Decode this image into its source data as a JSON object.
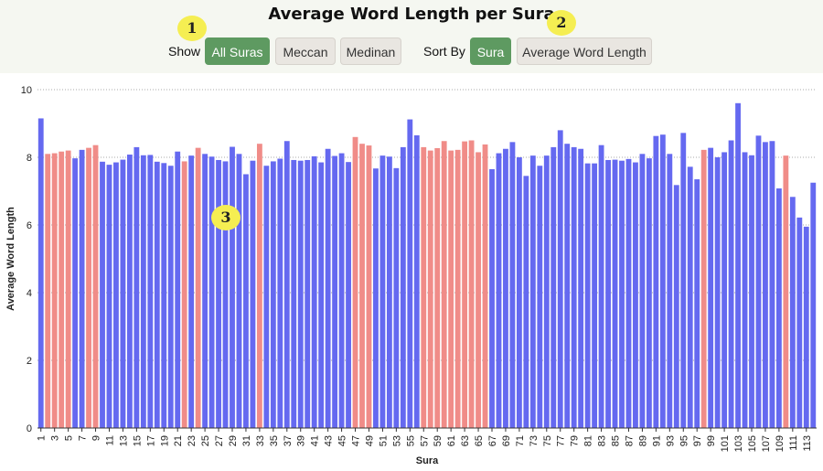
{
  "header": {
    "title": "Average Word Length per Sura",
    "show_label": "Show",
    "sort_label": "Sort By",
    "show_buttons": [
      {
        "label": "All Suras",
        "active": true
      },
      {
        "label": "Meccan",
        "active": false
      },
      {
        "label": "Medinan",
        "active": false
      }
    ],
    "sort_buttons": [
      {
        "label": "Sura",
        "active": true
      },
      {
        "label": "Average Word Length",
        "active": false
      }
    ]
  },
  "annotations": [
    "1",
    "2",
    "3"
  ],
  "colors": {
    "meccan": "#6569f0",
    "medinan": "#f08c88",
    "active_button": "#5e9a61",
    "annotation": "#f5ee52"
  },
  "chart_data": {
    "type": "bar",
    "xlabel": "Sura",
    "ylabel": "Average Word Length",
    "ylim": [
      0,
      10
    ],
    "yticks": [
      0,
      2,
      4,
      6,
      8,
      10
    ],
    "grid": "horizontal-dotted",
    "categories": [
      1,
      2,
      3,
      4,
      5,
      6,
      7,
      8,
      9,
      10,
      11,
      12,
      13,
      14,
      15,
      16,
      17,
      18,
      19,
      20,
      21,
      22,
      23,
      24,
      25,
      26,
      27,
      28,
      29,
      30,
      31,
      32,
      33,
      34,
      35,
      36,
      37,
      38,
      39,
      40,
      41,
      42,
      43,
      44,
      45,
      46,
      47,
      48,
      49,
      50,
      51,
      52,
      53,
      54,
      55,
      56,
      57,
      58,
      59,
      60,
      61,
      62,
      63,
      64,
      65,
      66,
      67,
      68,
      69,
      70,
      71,
      72,
      73,
      74,
      75,
      76,
      77,
      78,
      79,
      80,
      81,
      82,
      83,
      84,
      85,
      86,
      87,
      88,
      89,
      90,
      91,
      92,
      93,
      94,
      95,
      96,
      97,
      98,
      99,
      100,
      101,
      102,
      103,
      104,
      105,
      106,
      107,
      108,
      109,
      110,
      111,
      112,
      113,
      114
    ],
    "xtick_labels": [
      "1",
      "3",
      "5",
      "7",
      "9",
      "11",
      "13",
      "15",
      "17",
      "19",
      "21",
      "23",
      "25",
      "27",
      "29",
      "31",
      "33",
      "35",
      "37",
      "39",
      "41",
      "43",
      "45",
      "47",
      "49",
      "51",
      "53",
      "55",
      "57",
      "59",
      "61",
      "63",
      "65",
      "67",
      "69",
      "71",
      "73",
      "75",
      "77",
      "79",
      "81",
      "83",
      "85",
      "87",
      "89",
      "91",
      "93",
      "95",
      "97",
      "99",
      "101",
      "103",
      "105",
      "107",
      "109",
      "111",
      "113"
    ],
    "values": [
      9.15,
      8.1,
      8.12,
      8.17,
      8.2,
      7.97,
      8.22,
      8.28,
      8.36,
      7.87,
      7.78,
      7.85,
      7.93,
      8.08,
      8.3,
      8.06,
      8.07,
      7.87,
      7.83,
      7.75,
      8.17,
      7.88,
      8.05,
      8.28,
      8.1,
      8.02,
      7.92,
      7.88,
      8.31,
      8.1,
      7.5,
      7.9,
      8.4,
      7.75,
      7.88,
      7.96,
      8.48,
      7.92,
      7.9,
      7.92,
      8.03,
      7.85,
      8.25,
      8.04,
      8.12,
      7.86,
      8.6,
      8.4,
      8.35,
      7.67,
      8.05,
      8.02,
      7.68,
      8.3,
      9.12,
      8.65,
      8.3,
      8.2,
      8.27,
      8.48,
      8.2,
      8.22,
      8.47,
      8.5,
      8.15,
      8.38,
      7.65,
      8.12,
      8.25,
      8.45,
      8.0,
      7.45,
      8.05,
      7.75,
      8.05,
      8.3,
      8.8,
      8.4,
      8.3,
      8.25,
      7.82,
      7.82,
      8.36,
      7.92,
      7.93,
      7.9,
      7.95,
      7.85,
      8.1,
      7.97,
      8.63,
      8.67,
      8.1,
      7.18,
      8.72,
      7.72,
      7.35,
      8.22,
      8.28,
      8.0,
      8.15,
      8.5,
      9.6,
      8.15,
      8.06,
      8.64,
      8.45,
      8.48,
      7.08,
      8.05,
      6.83,
      6.22,
      5.95,
      7.25
    ],
    "series": [
      {
        "name": "Meccan",
        "color": "#6569f0"
      },
      {
        "name": "Medinan",
        "color": "#f08c88",
        "categories": [
          2,
          3,
          4,
          5,
          8,
          9,
          22,
          24,
          33,
          47,
          48,
          49,
          57,
          58,
          59,
          60,
          61,
          62,
          63,
          64,
          65,
          66,
          98,
          110
        ]
      }
    ]
  }
}
